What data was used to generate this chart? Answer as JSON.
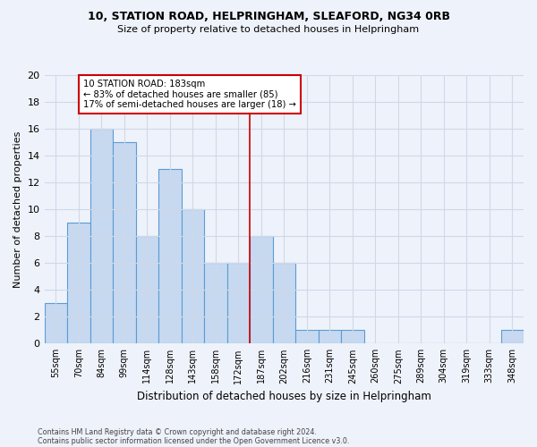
{
  "title_line1": "10, STATION ROAD, HELPRINGHAM, SLEAFORD, NG34 0RB",
  "title_line2": "Size of property relative to detached houses in Helpringham",
  "xlabel": "Distribution of detached houses by size in Helpringham",
  "ylabel": "Number of detached properties",
  "bin_labels": [
    "55sqm",
    "70sqm",
    "84sqm",
    "99sqm",
    "114sqm",
    "128sqm",
    "143sqm",
    "158sqm",
    "172sqm",
    "187sqm",
    "202sqm",
    "216sqm",
    "231sqm",
    "245sqm",
    "260sqm",
    "275sqm",
    "289sqm",
    "304sqm",
    "319sqm",
    "333sqm",
    "348sqm"
  ],
  "bar_values": [
    3,
    9,
    16,
    15,
    8,
    13,
    10,
    6,
    6,
    8,
    6,
    1,
    1,
    1,
    0,
    0,
    0,
    0,
    0,
    0,
    1
  ],
  "bar_color": "#c6d9f0",
  "bar_edge_color": "#5b9bd5",
  "vline_color": "#cc0000",
  "annotation_text": "10 STATION ROAD: 183sqm\n← 83% of detached houses are smaller (85)\n17% of semi-detached houses are larger (18) →",
  "annotation_box_color": "#ffffff",
  "annotation_box_edge": "#cc0000",
  "ylim": [
    0,
    20
  ],
  "yticks": [
    0,
    2,
    4,
    6,
    8,
    10,
    12,
    14,
    16,
    18,
    20
  ],
  "grid_color": "#d0d8e8",
  "bg_color": "#eef2fa",
  "footer_line1": "Contains HM Land Registry data © Crown copyright and database right 2024.",
  "footer_line2": "Contains public sector information licensed under the Open Government Licence v3.0."
}
